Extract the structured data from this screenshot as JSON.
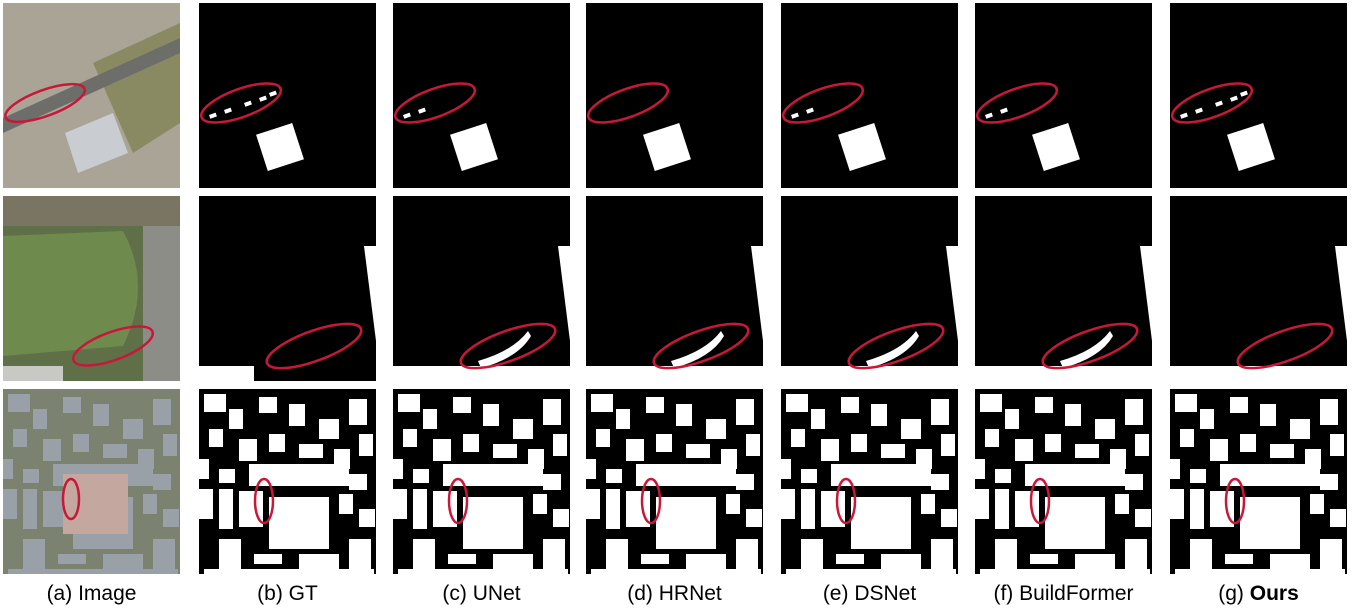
{
  "captions": [
    {
      "label": "(a)",
      "name": "Image"
    },
    {
      "label": "(b)",
      "name": "GT"
    },
    {
      "label": "(c)",
      "name": "UNet"
    },
    {
      "label": "(d)",
      "name": "HRNet"
    },
    {
      "label": "(e)",
      "name": "DSNet"
    },
    {
      "label": "(f)",
      "name": "BuildFormer"
    },
    {
      "label": "(g)",
      "name": "Ours"
    }
  ]
}
